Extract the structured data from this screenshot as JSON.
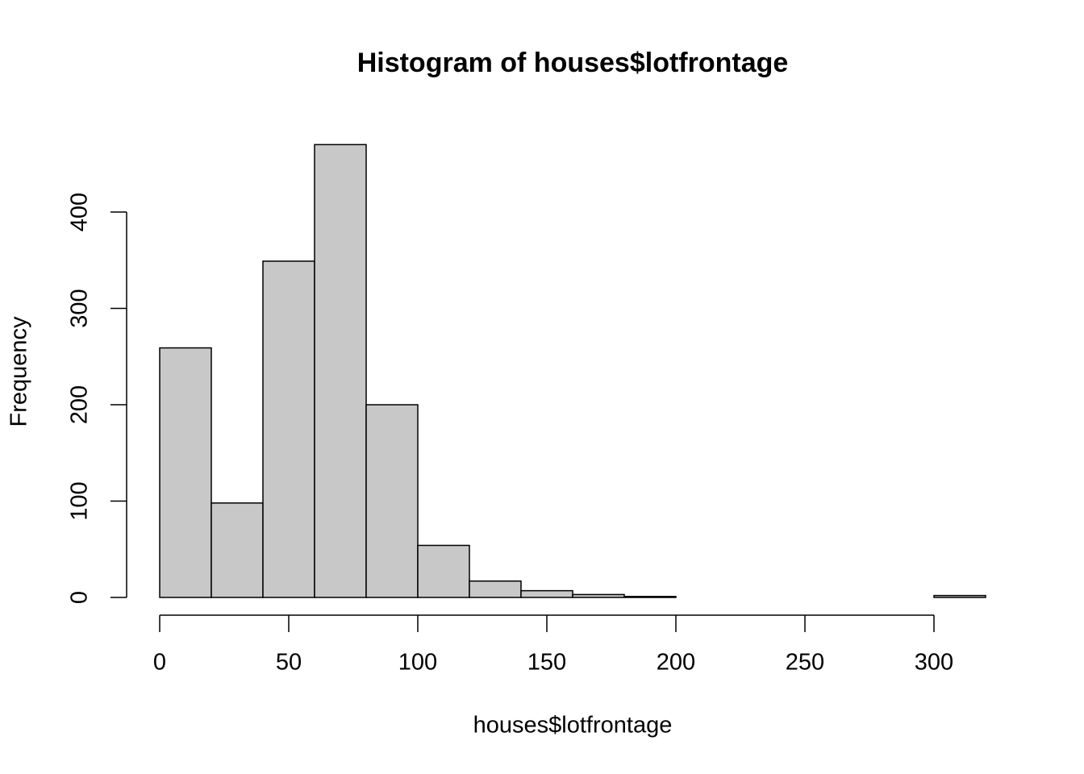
{
  "chart_data": {
    "type": "histogram",
    "title": "Histogram of houses$lotfrontage",
    "x_label": "houses$lotfrontage",
    "y_label": "Frequency",
    "bins": [
      0,
      20,
      40,
      60,
      80,
      100,
      120,
      140,
      160,
      180,
      200,
      220,
      240,
      260,
      280,
      300,
      320
    ],
    "values": [
      259,
      98,
      349,
      470,
      200,
      54,
      17,
      7,
      3,
      1,
      0,
      0,
      0,
      0,
      0,
      2
    ],
    "color": "#c8c8c8",
    "xlim": [
      0,
      320
    ],
    "xticks": [
      0,
      50,
      100,
      150,
      200,
      250,
      300
    ],
    "ylim": [
      0,
      470
    ],
    "yticks": [
      0,
      100,
      200,
      300,
      400
    ]
  }
}
